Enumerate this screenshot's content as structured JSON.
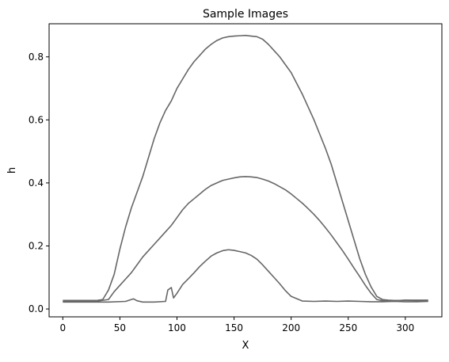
{
  "chart_data": {
    "type": "line",
    "title": "Sample Images",
    "xlabel": "X",
    "ylabel": "h",
    "xlim": [
      -12,
      332
    ],
    "ylim": [
      -0.025,
      0.905
    ],
    "xticks": [
      0,
      50,
      100,
      150,
      200,
      250,
      300
    ],
    "yticks": [
      0.0,
      0.2,
      0.4,
      0.6,
      0.8
    ],
    "ytick_labels": [
      "0.0",
      "0.2",
      "0.4",
      "0.6",
      "0.8"
    ],
    "grid": false,
    "legend": "none",
    "line_color": "#666666",
    "series": [
      {
        "x": [
          0,
          20,
          30,
          35,
          40,
          45,
          50,
          55,
          60,
          65,
          70,
          75,
          80,
          85,
          90,
          95,
          100,
          105,
          110,
          115,
          120,
          125,
          130,
          135,
          140,
          145,
          150,
          155,
          160,
          165,
          170,
          175,
          180,
          185,
          190,
          195,
          200,
          205,
          210,
          215,
          220,
          225,
          230,
          235,
          240,
          245,
          250,
          255,
          260,
          265,
          270,
          275,
          280,
          285,
          290,
          295,
          300,
          310,
          320
        ],
        "y": [
          0.027,
          0.027,
          0.027,
          0.03,
          0.06,
          0.11,
          0.19,
          0.26,
          0.32,
          0.37,
          0.42,
          0.48,
          0.54,
          0.59,
          0.63,
          0.66,
          0.7,
          0.73,
          0.76,
          0.785,
          0.805,
          0.825,
          0.84,
          0.852,
          0.86,
          0.864,
          0.866,
          0.867,
          0.868,
          0.866,
          0.864,
          0.856,
          0.84,
          0.82,
          0.8,
          0.775,
          0.75,
          0.715,
          0.68,
          0.64,
          0.6,
          0.555,
          0.51,
          0.46,
          0.4,
          0.34,
          0.28,
          0.22,
          0.16,
          0.11,
          0.07,
          0.04,
          0.03,
          0.028,
          0.027,
          0.027,
          0.028,
          0.028,
          0.028
        ]
      },
      {
        "x": [
          0,
          20,
          30,
          40,
          45,
          50,
          55,
          60,
          65,
          70,
          75,
          80,
          85,
          90,
          95,
          100,
          105,
          110,
          115,
          120,
          125,
          130,
          135,
          140,
          145,
          150,
          155,
          160,
          165,
          170,
          175,
          180,
          185,
          190,
          195,
          200,
          205,
          210,
          215,
          220,
          225,
          230,
          235,
          240,
          245,
          250,
          255,
          260,
          265,
          270,
          275,
          280,
          285,
          290,
          300,
          310,
          320
        ],
        "y": [
          0.024,
          0.024,
          0.025,
          0.03,
          0.055,
          0.075,
          0.095,
          0.115,
          0.14,
          0.165,
          0.185,
          0.205,
          0.225,
          0.245,
          0.265,
          0.29,
          0.315,
          0.335,
          0.35,
          0.365,
          0.38,
          0.392,
          0.4,
          0.408,
          0.412,
          0.416,
          0.419,
          0.42,
          0.419,
          0.417,
          0.412,
          0.406,
          0.398,
          0.388,
          0.378,
          0.365,
          0.35,
          0.335,
          0.318,
          0.3,
          0.28,
          0.258,
          0.235,
          0.21,
          0.185,
          0.158,
          0.13,
          0.103,
          0.075,
          0.05,
          0.03,
          0.026,
          0.025,
          0.025,
          0.028,
          0.026,
          0.025
        ]
      },
      {
        "x": [
          0,
          20,
          40,
          55,
          60,
          62,
          65,
          70,
          80,
          90,
          92,
          95,
          97,
          100,
          105,
          110,
          115,
          120,
          125,
          130,
          135,
          140,
          145,
          150,
          155,
          160,
          165,
          170,
          175,
          180,
          185,
          190,
          195,
          200,
          210,
          220,
          230,
          240,
          250,
          260,
          270,
          280,
          290,
          300,
          310,
          320
        ],
        "y": [
          0.022,
          0.022,
          0.022,
          0.024,
          0.03,
          0.032,
          0.026,
          0.022,
          0.022,
          0.024,
          0.06,
          0.068,
          0.035,
          0.05,
          0.078,
          0.096,
          0.115,
          0.135,
          0.152,
          0.168,
          0.178,
          0.185,
          0.188,
          0.186,
          0.182,
          0.178,
          0.17,
          0.158,
          0.14,
          0.12,
          0.1,
          0.08,
          0.058,
          0.04,
          0.025,
          0.024,
          0.025,
          0.024,
          0.025,
          0.024,
          0.023,
          0.023,
          0.024,
          0.023,
          0.023,
          0.024
        ]
      }
    ]
  }
}
